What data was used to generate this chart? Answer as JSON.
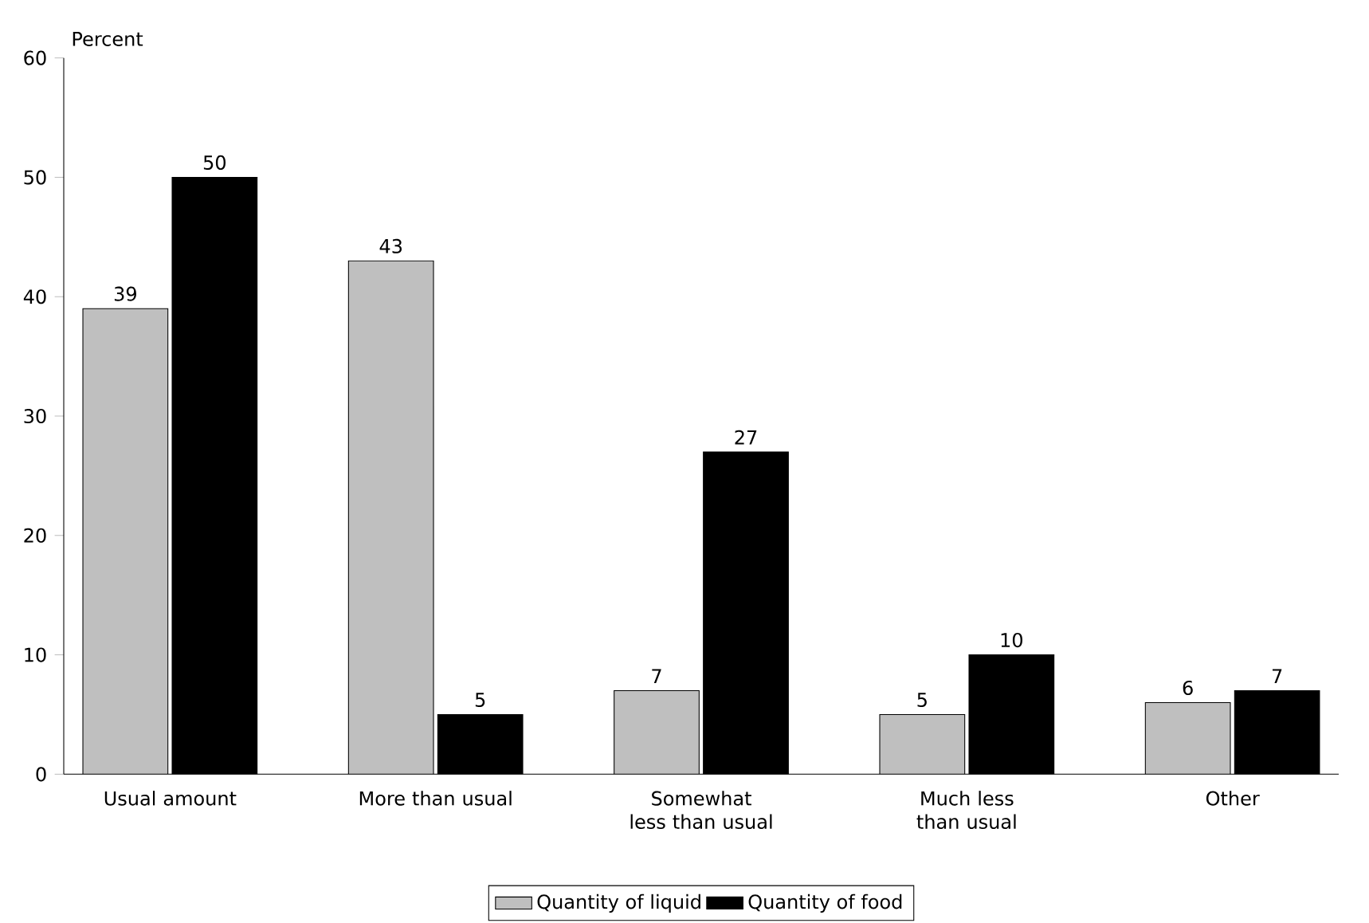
{
  "chart_data": {
    "type": "bar",
    "ylabel": "Percent",
    "categories": [
      "Usual amount",
      "More than usual",
      "Somewhat less than usual",
      "Much less than usual",
      "Other"
    ],
    "series": [
      {
        "name": "Quantity of liquid",
        "color": "#bfbfbf",
        "values": [
          39,
          43,
          7,
          5,
          6
        ]
      },
      {
        "name": "Quantity of food",
        "color": "#000000",
        "values": [
          50,
          5,
          27,
          10,
          7
        ]
      }
    ],
    "ylim": [
      0,
      60
    ],
    "yticks": [
      0,
      10,
      20,
      30,
      40,
      50,
      60
    ],
    "data_labels": true,
    "legend": "bottom",
    "grid": false
  }
}
